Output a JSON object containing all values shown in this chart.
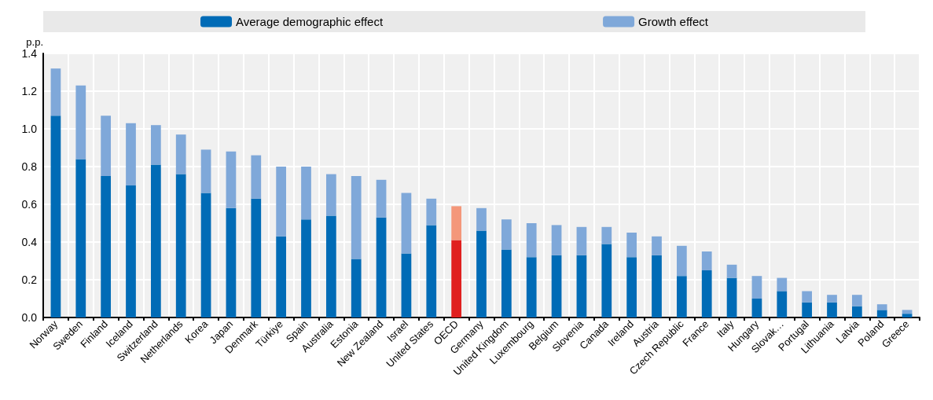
{
  "chart_data": {
    "type": "bar",
    "stacked": true,
    "ylabel": "p.p.",
    "categories": [
      "Norway",
      "Sweden",
      "Finland",
      "Iceland",
      "Switzerland",
      "Netherlands",
      "Korea",
      "Japan",
      "Denmark",
      "Türkiye",
      "Spain",
      "Australia",
      "Estonia",
      "New Zealand",
      "Israel",
      "United States",
      "OECD",
      "Germany",
      "United Kingdom",
      "Luxembourg",
      "Belgium",
      "Slovenia",
      "Canada",
      "Ireland",
      "Austria",
      "Czech Republic",
      "France",
      "Italy",
      "Hungary",
      "Slovak…",
      "Portugal",
      "Lithuania",
      "Latvia",
      "Poland",
      "Greece"
    ],
    "series": [
      {
        "name": "Average demographic effect",
        "color": "#006bb6",
        "colors": [
          "#006bb6",
          "#006bb6",
          "#006bb6",
          "#006bb6",
          "#006bb6",
          "#006bb6",
          "#006bb6",
          "#006bb6",
          "#006bb6",
          "#006bb6",
          "#006bb6",
          "#006bb6",
          "#006bb6",
          "#006bb6",
          "#006bb6",
          "#006bb6",
          "#e0201f",
          "#006bb6",
          "#006bb6",
          "#006bb6",
          "#006bb6",
          "#006bb6",
          "#006bb6",
          "#006bb6",
          "#006bb6",
          "#006bb6",
          "#006bb6",
          "#006bb6",
          "#006bb6",
          "#006bb6",
          "#006bb6",
          "#006bb6",
          "#006bb6",
          "#006bb6",
          "#006bb6"
        ],
        "values": [
          1.07,
          0.84,
          0.75,
          0.7,
          0.81,
          0.76,
          0.66,
          0.58,
          0.63,
          0.43,
          0.52,
          0.54,
          0.31,
          0.53,
          0.34,
          0.49,
          0.41,
          0.46,
          0.36,
          0.32,
          0.33,
          0.33,
          0.39,
          0.32,
          0.33,
          0.22,
          0.25,
          0.21,
          0.1,
          0.14,
          0.08,
          0.08,
          0.06,
          0.04,
          0.02
        ]
      },
      {
        "name": "Growth effect",
        "color": "#7fa8d9",
        "colors": [
          "#7fa8d9",
          "#7fa8d9",
          "#7fa8d9",
          "#7fa8d9",
          "#7fa8d9",
          "#7fa8d9",
          "#7fa8d9",
          "#7fa8d9",
          "#7fa8d9",
          "#7fa8d9",
          "#7fa8d9",
          "#7fa8d9",
          "#7fa8d9",
          "#7fa8d9",
          "#7fa8d9",
          "#7fa8d9",
          "#f4977a",
          "#7fa8d9",
          "#7fa8d9",
          "#7fa8d9",
          "#7fa8d9",
          "#7fa8d9",
          "#7fa8d9",
          "#7fa8d9",
          "#7fa8d9",
          "#7fa8d9",
          "#7fa8d9",
          "#7fa8d9",
          "#7fa8d9",
          "#7fa8d9",
          "#7fa8d9",
          "#7fa8d9",
          "#7fa8d9",
          "#7fa8d9",
          "#7fa8d9"
        ],
        "values": [
          0.25,
          0.39,
          0.32,
          0.33,
          0.21,
          0.21,
          0.23,
          0.3,
          0.23,
          0.37,
          0.28,
          0.22,
          0.44,
          0.2,
          0.32,
          0.14,
          0.18,
          0.12,
          0.16,
          0.18,
          0.16,
          0.15,
          0.09,
          0.13,
          0.1,
          0.16,
          0.1,
          0.07,
          0.12,
          0.07,
          0.06,
          0.04,
          0.06,
          0.03,
          0.02
        ]
      }
    ],
    "ylim": [
      0,
      1.4
    ],
    "yticks": [
      {
        "value": 0,
        "label": "0.0"
      },
      0.2,
      0.4,
      0.6,
      0.8,
      {
        "value": 1,
        "label": "1.0"
      },
      1.2,
      1.4
    ],
    "grid": true,
    "legend": "top"
  }
}
